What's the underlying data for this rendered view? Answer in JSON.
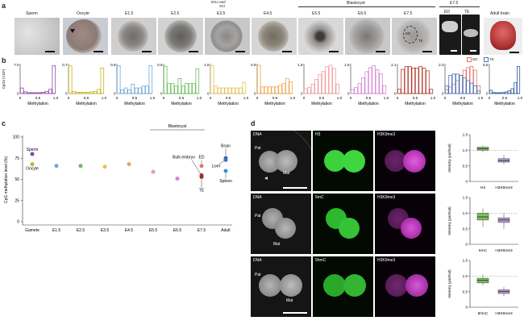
{
  "panel_a": {
    "letter": "a",
    "stages": [
      {
        "label": "Sperm"
      },
      {
        "label": "Oocyte"
      },
      {
        "label": "E1.5"
      },
      {
        "label": "E2.5"
      },
      {
        "label": "E3.5"
      },
      {
        "label": "E4.5"
      },
      {
        "label": "E5.5"
      },
      {
        "label": "E6.5"
      },
      {
        "label": "E7.5"
      },
      {
        "label": "ED"
      },
      {
        "label": "TE"
      },
      {
        "label": "Adult brain"
      }
    ],
    "ega_label_1": "EGA and",
    "ega_label_2": "XCI",
    "blastocyst_label": "Blastocyst",
    "e75_header": "E7.5",
    "ed_in_photo": "ED",
    "te_in_photo": "TE"
  },
  "panel_b": {
    "letter": "b",
    "ylabel": "CpGs (×10⁶)",
    "xlabel": "Methylation",
    "legend_ed": "ED",
    "legend_te": "TE",
    "ed_color": "#e8736b",
    "te_color": "#4a73b8"
  },
  "panel_c": {
    "letter": "c",
    "ylabel": "CpG methylation level (%)",
    "blastocyst_label": "Blastocyst",
    "bulk_label": "Bulk embryo",
    "ed_label": "ED",
    "liver_label": "Liver",
    "te_label": "TE",
    "brain_label": "Brain",
    "spleen_label": "Spleen",
    "sperm_label": "Sperm",
    "oocyte_label": "Oocyte"
  },
  "panel_d": {
    "letter": "d",
    "rows": [
      {
        "dna": "DNA",
        "mark1": "H3",
        "mark2": "H3K9me3",
        "pat": "Pat",
        "mat": "Mat",
        "cat1": "H3",
        "cat2": "H3K9me3",
        "ylabel": "Intensity (pat/mat)"
      },
      {
        "dna": "DNA",
        "mark1": "5mC",
        "mark2": "H3K9me3",
        "pat": "Pat",
        "mat": "Mat",
        "cat1": "5mC",
        "cat2": "H3K9me3",
        "ylabel": "Intensity (pat/mat)"
      },
      {
        "dna": "DNA",
        "mark1": "5hmC",
        "mark2": "H3K9me3",
        "pat": "Pat",
        "mat": "Mat",
        "cat1": "5hmC",
        "cat2": "H3K9me3",
        "ylabel": "Intensity (pat/mat)"
      }
    ]
  },
  "chart_data": [
    {
      "id": "b",
      "type": "histogram",
      "title": "CpG methylation distributions",
      "xlabel": "Methylation",
      "ylabel": "CpGs (×10⁶)",
      "xticks": [
        "0",
        "0.5",
        "1.0"
      ],
      "panels": [
        {
          "stage": "Sperm",
          "ymax": "7.0",
          "ymax_num": 7.0,
          "color": "#8e44ad",
          "values": [
            1.3,
            0.4,
            0.2,
            0.2,
            0.2,
            0.2,
            0.3,
            0.5,
            1.0,
            6.5
          ]
        },
        {
          "stage": "Oocyte",
          "ymax": "0.7",
          "ymax_num": 0.7,
          "color": "#c9b21c",
          "values": [
            0.65,
            0.05,
            0.03,
            0.03,
            0.03,
            0.03,
            0.04,
            0.05,
            0.1,
            0.6
          ]
        },
        {
          "stage": "E1.5",
          "ymax": "0.8",
          "ymax_num": 0.8,
          "color": "#6fa8dc",
          "values": [
            0.75,
            0.1,
            0.15,
            0.1,
            0.25,
            0.15,
            0.15,
            0.2,
            0.2,
            0.75
          ]
        },
        {
          "stage": "E2.5",
          "ymax": "0.6",
          "ymax_num": 0.6,
          "color": "#6abf5a",
          "values": [
            0.55,
            0.2,
            0.2,
            0.15,
            0.3,
            0.15,
            0.2,
            0.2,
            0.2,
            0.5
          ]
        },
        {
          "stage": "E3.5",
          "ymax": "1.6",
          "ymax_num": 1.6,
          "color": "#e0c558",
          "values": [
            1.5,
            0.4,
            0.3,
            0.3,
            0.3,
            0.3,
            0.3,
            0.3,
            0.3,
            0.6
          ]
        },
        {
          "stage": "E4.5",
          "ymax": "0.9",
          "ymax_num": 0.9,
          "color": "#f0a64a",
          "values": [
            0.85,
            0.2,
            0.2,
            0.2,
            0.2,
            0.2,
            0.25,
            0.3,
            0.45,
            0.35
          ]
        },
        {
          "stage": "E5.5",
          "ymax": "1.9",
          "ymax_num": 1.9,
          "color": "#f29a9a",
          "values": [
            0.3,
            0.4,
            0.6,
            0.9,
            1.2,
            1.4,
            1.7,
            1.8,
            1.6,
            0.6
          ]
        },
        {
          "stage": "E6.5",
          "ymax": "1.5",
          "ymax_num": 1.5,
          "color": "#d982d4",
          "values": [
            0.2,
            0.3,
            0.5,
            0.8,
            1.1,
            1.3,
            1.4,
            1.2,
            1.0,
            0.4
          ]
        },
        {
          "stage": "E7.5",
          "ymax": "2.1",
          "ymax_num": 2.1,
          "color": "#b03a2e",
          "values": [
            0.3,
            1.7,
            1.9,
            1.9,
            1.8,
            1.8,
            1.9,
            1.8,
            1.6,
            0.3
          ]
        },
        {
          "stage": "ED/TE",
          "ymax": "2.3",
          "ymax_num": 2.3,
          "color": "#e8736b",
          "values": [
            0.3,
            0.5,
            0.7,
            1.0,
            1.4,
            1.8,
            2.0,
            2.1,
            1.8,
            0.6
          ],
          "series2_color": "#4a73b8",
          "values2": [
            0.6,
            1.4,
            1.5,
            1.5,
            1.4,
            1.2,
            1.0,
            0.8,
            0.6,
            0.2
          ]
        },
        {
          "stage": "Adult brain",
          "ymax": "5.5",
          "ymax_num": 5.5,
          "color": "#2c5aa0",
          "values": [
            0.6,
            0.2,
            0.15,
            0.15,
            0.2,
            0.3,
            0.5,
            0.9,
            2.0,
            5.0
          ]
        }
      ]
    },
    {
      "id": "c",
      "type": "scatter",
      "ylabel": "CpG methylation level (%)",
      "ylim": [
        0,
        100
      ],
      "yticks": [
        "0",
        "25",
        "50",
        "75",
        "100"
      ],
      "categories": [
        "Gamete",
        "E1.5",
        "E2.5",
        "E3.5",
        "E4.5",
        "E5.5",
        "E6.5",
        "E7.5",
        "Adult"
      ],
      "points": [
        {
          "category": "Gamete",
          "value": 80,
          "color": "#8e44ad",
          "label": "Sperm"
        },
        {
          "category": "Gamete",
          "value": 68,
          "color": "#c9b21c",
          "label": "Oocyte"
        },
        {
          "category": "E1.5",
          "value": 66,
          "color": "#6fa8dc",
          "label": ""
        },
        {
          "category": "E2.5",
          "value": 66,
          "color": "#6abf5a",
          "label": ""
        },
        {
          "category": "E3.5",
          "value": 65,
          "color": "#e0c558",
          "label": ""
        },
        {
          "category": "E4.5",
          "value": 68,
          "color": "#f0a64a",
          "label": ""
        },
        {
          "category": "E5.5",
          "value": 59,
          "color": "#f29a9a",
          "label": ""
        },
        {
          "category": "E6.5",
          "value": 51,
          "color": "#d982d4",
          "label": ""
        },
        {
          "category": "E7.5",
          "value": 66,
          "color": "#e8736b",
          "label": "ED"
        },
        {
          "category": "E7.5",
          "value": 55,
          "color": "#b03a2e",
          "label": "Bulk embryo"
        },
        {
          "category": "E7.5",
          "value": 53,
          "color": "#9b2d20",
          "label": "TE"
        },
        {
          "category": "Adult",
          "value": 75,
          "color": "#2c5aa0",
          "label": "Brain"
        },
        {
          "category": "Adult",
          "value": 73,
          "color": "#4a73b8",
          "label": "Liver"
        },
        {
          "category": "Adult",
          "value": 60,
          "color": "#3a8fd8",
          "label": "Spleen"
        }
      ]
    },
    {
      "id": "d",
      "type": "boxplot",
      "ylabel": "Intensity (pat/mat)",
      "plots": [
        {
          "categories": [
            "H3",
            "H3K9me3"
          ],
          "colors": [
            "#7cc25c",
            "#b79bd1"
          ],
          "yticks": [
            "0",
            "0.5",
            "1.0",
            "1.5"
          ],
          "ylim": [
            0,
            1.5
          ],
          "boxes": [
            {
              "min": 0.93,
              "q1": 1.0,
              "median": 1.05,
              "q3": 1.1,
              "max": 1.15
            },
            {
              "min": 0.55,
              "q1": 0.62,
              "median": 0.67,
              "q3": 0.73,
              "max": 0.85
            }
          ]
        },
        {
          "categories": [
            "5mC",
            "H3K9me3"
          ],
          "colors": [
            "#7cc25c",
            "#b79bd1"
          ],
          "yticks": [
            "0",
            "0.5",
            "1.0",
            "1.5"
          ],
          "ylim": [
            0,
            1.5
          ],
          "boxes": [
            {
              "min": 0.55,
              "q1": 0.78,
              "median": 0.88,
              "q3": 1.0,
              "max": 1.15
            },
            {
              "min": 0.5,
              "q1": 0.7,
              "median": 0.78,
              "q3": 0.85,
              "max": 1.0
            }
          ]
        },
        {
          "categories": [
            "5hmC",
            "H3K9me3"
          ],
          "colors": [
            "#7cc25c",
            "#b79bd1"
          ],
          "yticks": [
            "0",
            "0.5",
            "1.0",
            "1.5"
          ],
          "ylim": [
            0,
            1.5
          ],
          "boxes": [
            {
              "min": 0.7,
              "q1": 0.78,
              "median": 0.86,
              "q3": 0.93,
              "max": 1.05
            },
            {
              "min": 0.35,
              "q1": 0.44,
              "median": 0.5,
              "q3": 0.56,
              "max": 0.65
            }
          ]
        }
      ]
    }
  ]
}
